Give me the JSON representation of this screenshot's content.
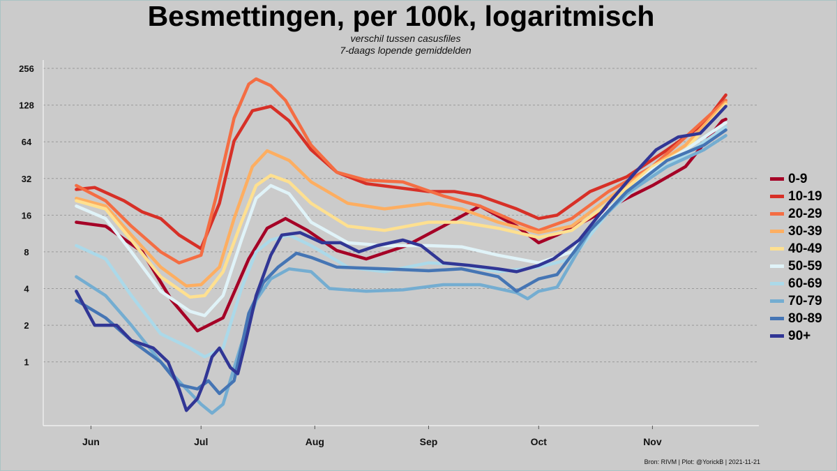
{
  "chart_data": {
    "type": "line",
    "title": "Besmettingen, per 100k, logaritmisch",
    "subtitle": [
      "verschil tussen casusfiles",
      "7-daags lopende gemiddelden"
    ],
    "caption": "Bron: RIVM | Plot: @YorickB  |  2021-11-21",
    "y_scale": "log2",
    "ylim": [
      0.3,
      300
    ],
    "y_ticks": [
      1,
      2,
      4,
      8,
      16,
      32,
      64,
      128,
      256
    ],
    "y_tick_labels": [
      "1",
      "2",
      "4",
      "8",
      "16",
      "32",
      "64",
      "128",
      "256"
    ],
    "x_range": [
      "2021-05-19",
      "2021-11-30"
    ],
    "x_ticks": [
      "2021-06-01",
      "2021-07-01",
      "2021-08-01",
      "2021-09-01",
      "2021-10-01",
      "2021-11-01"
    ],
    "x_tick_labels": [
      "Jun",
      "Jul",
      "Aug",
      "Sep",
      "Oct",
      "Nov"
    ],
    "grid": "horizontal dashed",
    "legend_position": "right",
    "series": [
      {
        "name": "0-9",
        "color": "#a50026",
        "points": [
          [
            "2021-05-28",
            14
          ],
          [
            "2021-06-05",
            13
          ],
          [
            "2021-06-15",
            8
          ],
          [
            "2021-06-23",
            3.2
          ],
          [
            "2021-06-30",
            1.8
          ],
          [
            "2021-07-07",
            2.3
          ],
          [
            "2021-07-14",
            7
          ],
          [
            "2021-07-19",
            12.5
          ],
          [
            "2021-07-24",
            15
          ],
          [
            "2021-07-30",
            12
          ],
          [
            "2021-08-07",
            8.2
          ],
          [
            "2021-08-15",
            7
          ],
          [
            "2021-08-26",
            9
          ],
          [
            "2021-09-05",
            13
          ],
          [
            "2021-09-15",
            19
          ],
          [
            "2021-09-25",
            13
          ],
          [
            "2021-10-01",
            9.5
          ],
          [
            "2021-10-06",
            11
          ],
          [
            "2021-10-15",
            15
          ],
          [
            "2021-10-25",
            22
          ],
          [
            "2021-11-01",
            28
          ],
          [
            "2021-11-10",
            40
          ],
          [
            "2021-11-20",
            95
          ],
          [
            "2021-11-21",
            98
          ]
        ]
      },
      {
        "name": "10-19",
        "color": "#d73027",
        "points": [
          [
            "2021-05-28",
            26
          ],
          [
            "2021-06-02",
            27
          ],
          [
            "2021-06-10",
            21
          ],
          [
            "2021-06-15",
            17
          ],
          [
            "2021-06-20",
            15
          ],
          [
            "2021-06-25",
            11
          ],
          [
            "2021-07-01",
            8.5
          ],
          [
            "2021-07-06",
            20
          ],
          [
            "2021-07-10",
            65
          ],
          [
            "2021-07-15",
            115
          ],
          [
            "2021-07-20",
            125
          ],
          [
            "2021-07-25",
            95
          ],
          [
            "2021-07-31",
            55
          ],
          [
            "2021-08-07",
            36
          ],
          [
            "2021-08-15",
            29
          ],
          [
            "2021-09-01",
            25
          ],
          [
            "2021-09-08",
            25
          ],
          [
            "2021-09-15",
            23
          ],
          [
            "2021-09-25",
            18
          ],
          [
            "2021-10-01",
            15
          ],
          [
            "2021-10-06",
            16
          ],
          [
            "2021-10-15",
            25
          ],
          [
            "2021-10-25",
            33
          ],
          [
            "2021-11-05",
            55
          ],
          [
            "2021-11-15",
            90
          ],
          [
            "2021-11-21",
            155
          ]
        ]
      },
      {
        "name": "20-29",
        "color": "#f46d43",
        "points": [
          [
            "2021-05-28",
            28
          ],
          [
            "2021-06-05",
            21
          ],
          [
            "2021-06-12",
            13
          ],
          [
            "2021-06-20",
            8
          ],
          [
            "2021-06-25",
            6.5
          ],
          [
            "2021-07-01",
            7.5
          ],
          [
            "2021-07-05",
            22
          ],
          [
            "2021-07-10",
            100
          ],
          [
            "2021-07-14",
            190
          ],
          [
            "2021-07-16",
            210
          ],
          [
            "2021-07-20",
            185
          ],
          [
            "2021-07-24",
            140
          ],
          [
            "2021-07-31",
            60
          ],
          [
            "2021-08-07",
            36
          ],
          [
            "2021-08-15",
            31
          ],
          [
            "2021-08-25",
            30
          ],
          [
            "2021-09-05",
            23
          ],
          [
            "2021-09-15",
            19
          ],
          [
            "2021-09-25",
            14
          ],
          [
            "2021-10-01",
            12
          ],
          [
            "2021-10-10",
            15
          ],
          [
            "2021-10-20",
            25
          ],
          [
            "2021-11-01",
            40
          ],
          [
            "2021-11-10",
            70
          ],
          [
            "2021-11-21",
            140
          ]
        ]
      },
      {
        "name": "30-39",
        "color": "#fdae61",
        "points": [
          [
            "2021-05-28",
            22
          ],
          [
            "2021-06-05",
            19
          ],
          [
            "2021-06-12",
            11
          ],
          [
            "2021-06-20",
            6
          ],
          [
            "2021-06-27",
            4.2
          ],
          [
            "2021-07-01",
            4.3
          ],
          [
            "2021-07-06",
            6
          ],
          [
            "2021-07-10",
            15
          ],
          [
            "2021-07-15",
            40
          ],
          [
            "2021-07-19",
            54
          ],
          [
            "2021-07-25",
            45
          ],
          [
            "2021-07-31",
            30
          ],
          [
            "2021-08-10",
            20
          ],
          [
            "2021-08-20",
            18
          ],
          [
            "2021-09-01",
            20
          ],
          [
            "2021-09-10",
            18
          ],
          [
            "2021-09-20",
            14
          ],
          [
            "2021-10-01",
            11.5
          ],
          [
            "2021-10-10",
            13
          ],
          [
            "2021-10-20",
            22
          ],
          [
            "2021-11-01",
            40
          ],
          [
            "2021-11-10",
            60
          ],
          [
            "2021-11-21",
            135
          ]
        ]
      },
      {
        "name": "40-49",
        "color": "#fee090",
        "points": [
          [
            "2021-05-28",
            21
          ],
          [
            "2021-06-05",
            18
          ],
          [
            "2021-06-12",
            10
          ],
          [
            "2021-06-20",
            5
          ],
          [
            "2021-06-28",
            3.4
          ],
          [
            "2021-07-02",
            3.5
          ],
          [
            "2021-07-07",
            5.5
          ],
          [
            "2021-07-12",
            14
          ],
          [
            "2021-07-16",
            28
          ],
          [
            "2021-07-20",
            34
          ],
          [
            "2021-07-25",
            30
          ],
          [
            "2021-07-31",
            20
          ],
          [
            "2021-08-10",
            13
          ],
          [
            "2021-08-20",
            12
          ],
          [
            "2021-09-01",
            14
          ],
          [
            "2021-09-10",
            14
          ],
          [
            "2021-09-20",
            12.5
          ],
          [
            "2021-10-01",
            10.5
          ],
          [
            "2021-10-10",
            12
          ],
          [
            "2021-10-20",
            20
          ],
          [
            "2021-11-01",
            40
          ],
          [
            "2021-11-10",
            55
          ],
          [
            "2021-11-21",
            130
          ]
        ]
      },
      {
        "name": "50-59",
        "color": "#e0f3f8",
        "points": [
          [
            "2021-05-28",
            19
          ],
          [
            "2021-06-05",
            15
          ],
          [
            "2021-06-12",
            8
          ],
          [
            "2021-06-20",
            3.8
          ],
          [
            "2021-06-28",
            2.6
          ],
          [
            "2021-07-02",
            2.4
          ],
          [
            "2021-07-07",
            3.5
          ],
          [
            "2021-07-12",
            10
          ],
          [
            "2021-07-16",
            22
          ],
          [
            "2021-07-20",
            28
          ],
          [
            "2021-07-25",
            24
          ],
          [
            "2021-07-31",
            14
          ],
          [
            "2021-08-10",
            9.5
          ],
          [
            "2021-08-20",
            9
          ],
          [
            "2021-09-01",
            9
          ],
          [
            "2021-09-10",
            8.8
          ],
          [
            "2021-09-20",
            7.5
          ],
          [
            "2021-10-01",
            6.5
          ],
          [
            "2021-10-10",
            8
          ],
          [
            "2021-10-20",
            18
          ],
          [
            "2021-11-01",
            38
          ],
          [
            "2021-11-10",
            55
          ],
          [
            "2021-11-21",
            92
          ]
        ]
      },
      {
        "name": "60-69",
        "color": "#abd9e9",
        "points": [
          [
            "2021-05-28",
            9
          ],
          [
            "2021-06-05",
            7
          ],
          [
            "2021-06-12",
            3.5
          ],
          [
            "2021-06-20",
            1.7
          ],
          [
            "2021-06-28",
            1.3
          ],
          [
            "2021-07-02",
            1.1
          ],
          [
            "2021-07-07",
            1.3
          ],
          [
            "2021-07-12",
            4
          ],
          [
            "2021-07-16",
            8
          ],
          [
            "2021-07-20",
            10
          ],
          [
            "2021-07-25",
            11
          ],
          [
            "2021-07-31",
            9
          ],
          [
            "2021-08-10",
            6
          ],
          [
            "2021-08-20",
            5.5
          ],
          [
            "2021-09-01",
            6.5
          ],
          [
            "2021-09-10",
            6.3
          ],
          [
            "2021-09-20",
            5.5
          ],
          [
            "2021-10-01",
            6
          ],
          [
            "2021-10-10",
            7
          ],
          [
            "2021-10-20",
            17
          ],
          [
            "2021-11-01",
            35
          ],
          [
            "2021-11-10",
            50
          ],
          [
            "2021-11-21",
            85
          ]
        ]
      },
      {
        "name": "70-79",
        "color": "#74add1",
        "points": [
          [
            "2021-05-28",
            5
          ],
          [
            "2021-06-05",
            3.5
          ],
          [
            "2021-06-12",
            2
          ],
          [
            "2021-06-20",
            1
          ],
          [
            "2021-06-27",
            0.6
          ],
          [
            "2021-07-01",
            0.45
          ],
          [
            "2021-07-04",
            0.38
          ],
          [
            "2021-07-07",
            0.45
          ],
          [
            "2021-07-12",
            1.4
          ],
          [
            "2021-07-16",
            3.2
          ],
          [
            "2021-07-20",
            4.8
          ],
          [
            "2021-07-25",
            5.8
          ],
          [
            "2021-07-31",
            5.5
          ],
          [
            "2021-08-05",
            4
          ],
          [
            "2021-08-15",
            3.8
          ],
          [
            "2021-08-25",
            3.9
          ],
          [
            "2021-09-05",
            4.3
          ],
          [
            "2021-09-15",
            4.3
          ],
          [
            "2021-09-25",
            3.7
          ],
          [
            "2021-09-28",
            3.3
          ],
          [
            "2021-10-01",
            3.8
          ],
          [
            "2021-10-06",
            4.1
          ],
          [
            "2021-10-15",
            12
          ],
          [
            "2021-10-25",
            24
          ],
          [
            "2021-11-05",
            40
          ],
          [
            "2021-11-15",
            55
          ],
          [
            "2021-11-21",
            72
          ]
        ]
      },
      {
        "name": "80-89",
        "color": "#4575b4",
        "points": [
          [
            "2021-05-28",
            3.2
          ],
          [
            "2021-06-05",
            2.3
          ],
          [
            "2021-06-12",
            1.5
          ],
          [
            "2021-06-20",
            1
          ],
          [
            "2021-06-25",
            0.65
          ],
          [
            "2021-06-30",
            0.6
          ],
          [
            "2021-07-03",
            0.7
          ],
          [
            "2021-07-06",
            0.55
          ],
          [
            "2021-07-10",
            0.7
          ],
          [
            "2021-07-14",
            2.5
          ],
          [
            "2021-07-18",
            4.5
          ],
          [
            "2021-07-22",
            6
          ],
          [
            "2021-07-27",
            7.8
          ],
          [
            "2021-07-31",
            7.2
          ],
          [
            "2021-08-07",
            6
          ],
          [
            "2021-08-20",
            5.8
          ],
          [
            "2021-09-01",
            5.6
          ],
          [
            "2021-09-10",
            5.8
          ],
          [
            "2021-09-20",
            5
          ],
          [
            "2021-09-25",
            3.8
          ],
          [
            "2021-10-01",
            4.8
          ],
          [
            "2021-10-06",
            5.2
          ],
          [
            "2021-10-15",
            12
          ],
          [
            "2021-10-25",
            25
          ],
          [
            "2021-11-05",
            45
          ],
          [
            "2021-11-15",
            60
          ],
          [
            "2021-11-21",
            80
          ]
        ]
      },
      {
        "name": "90+",
        "color": "#313695",
        "points": [
          [
            "2021-05-28",
            3.8
          ],
          [
            "2021-06-02",
            2
          ],
          [
            "2021-06-08",
            2
          ],
          [
            "2021-06-12",
            1.5
          ],
          [
            "2021-06-18",
            1.3
          ],
          [
            "2021-06-22",
            1
          ],
          [
            "2021-06-25",
            0.6
          ],
          [
            "2021-06-27",
            0.4
          ],
          [
            "2021-06-30",
            0.5
          ],
          [
            "2021-07-02",
            0.7
          ],
          [
            "2021-07-04",
            1.1
          ],
          [
            "2021-07-06",
            1.3
          ],
          [
            "2021-07-09",
            0.9
          ],
          [
            "2021-07-11",
            0.8
          ],
          [
            "2021-07-13",
            1.4
          ],
          [
            "2021-07-16",
            3.5
          ],
          [
            "2021-07-20",
            7.5
          ],
          [
            "2021-07-23",
            11
          ],
          [
            "2021-07-28",
            11.5
          ],
          [
            "2021-08-03",
            9.5
          ],
          [
            "2021-08-08",
            9.5
          ],
          [
            "2021-08-13",
            8
          ],
          [
            "2021-08-18",
            9
          ],
          [
            "2021-08-25",
            10
          ],
          [
            "2021-08-30",
            9
          ],
          [
            "2021-09-05",
            6.5
          ],
          [
            "2021-09-12",
            6.2
          ],
          [
            "2021-09-20",
            5.8
          ],
          [
            "2021-09-25",
            5.5
          ],
          [
            "2021-10-01",
            6.2
          ],
          [
            "2021-10-05",
            7
          ],
          [
            "2021-10-12",
            10
          ],
          [
            "2021-10-20",
            20
          ],
          [
            "2021-10-27",
            35
          ],
          [
            "2021-11-02",
            55
          ],
          [
            "2021-11-08",
            70
          ],
          [
            "2021-11-14",
            75
          ],
          [
            "2021-11-18",
            100
          ],
          [
            "2021-11-21",
            125
          ]
        ]
      }
    ]
  }
}
